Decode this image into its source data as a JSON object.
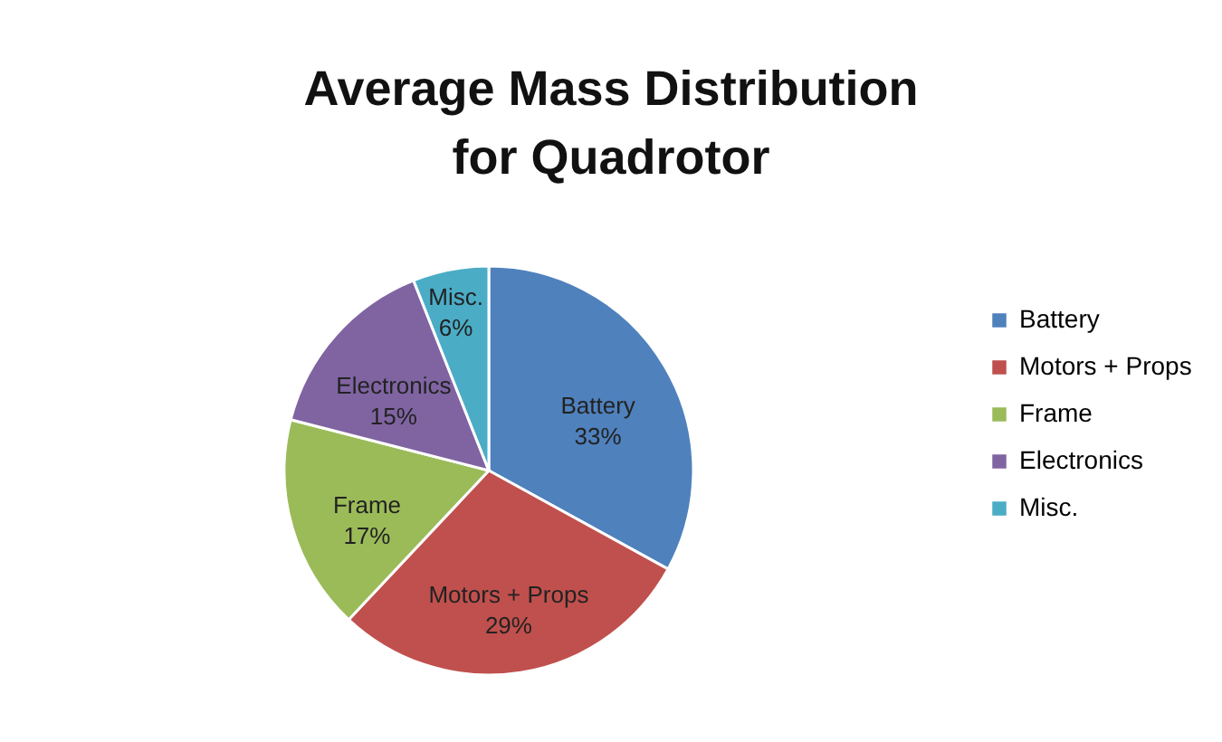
{
  "chart_data": {
    "type": "pie",
    "title": "Average Mass Distribution\nfor Quadrotor",
    "categories": [
      "Battery",
      "Motors + Props",
      "Frame",
      "Electronics",
      "Misc."
    ],
    "values": [
      33,
      29,
      17,
      15,
      6
    ],
    "colors": [
      "#4f81bd",
      "#c0504d",
      "#9bbb59",
      "#8064a2",
      "#4bacc6"
    ],
    "value_labels": [
      "33%",
      "29%",
      "17%",
      "15%",
      "6%"
    ],
    "legend": "right"
  }
}
